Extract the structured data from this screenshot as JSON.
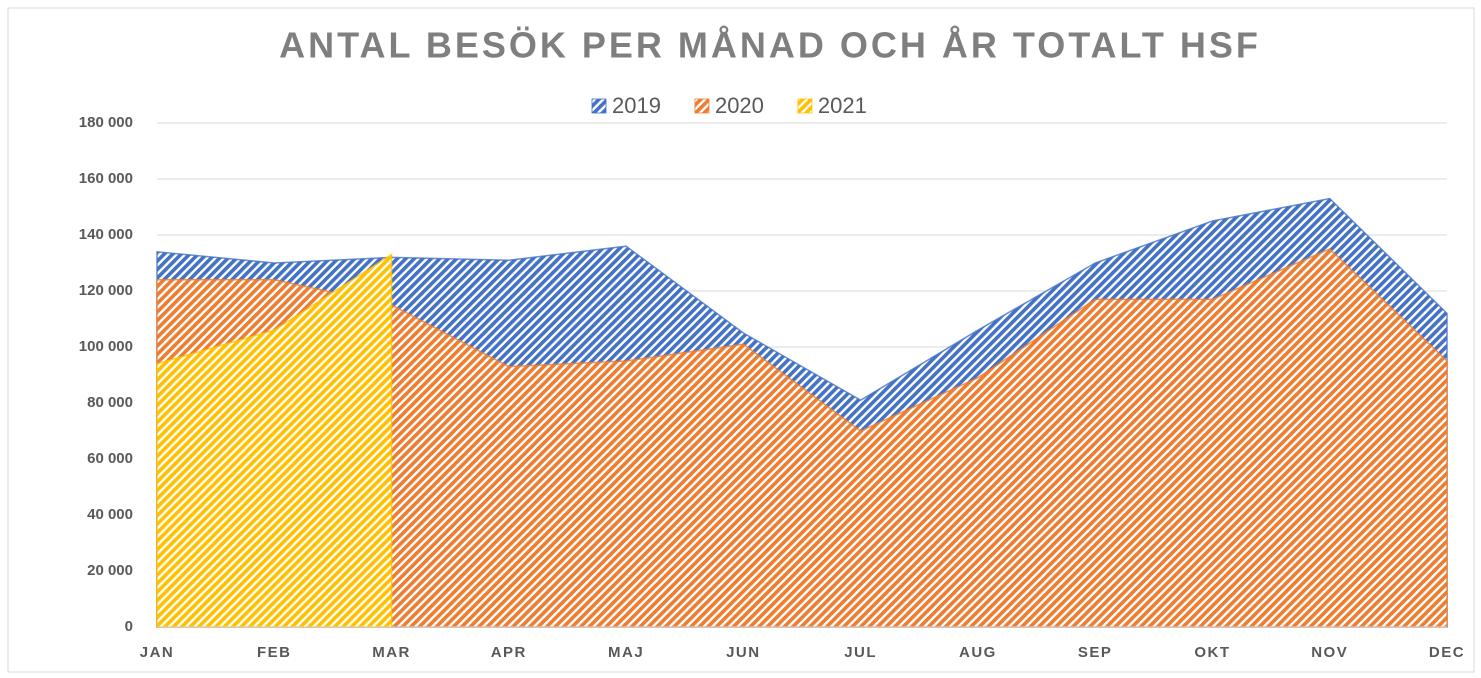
{
  "chart_data": {
    "type": "area",
    "title": "ANTAL BESÖK PER MÅNAD OCH ÅR TOTALT HSF",
    "categories": [
      "JAN",
      "FEB",
      "MAR",
      "APR",
      "MAJ",
      "JUN",
      "JUL",
      "AUG",
      "SEP",
      "OKT",
      "NOV",
      "DEC"
    ],
    "series": [
      {
        "name": "2019",
        "color": "#4472c4",
        "values": [
          134000,
          130000,
          132000,
          131000,
          136000,
          105000,
          81000,
          106000,
          130000,
          145000,
          153000,
          112000
        ]
      },
      {
        "name": "2020",
        "color": "#ed7d31",
        "values": [
          124000,
          124000,
          115000,
          93000,
          95000,
          101000,
          70000,
          89000,
          117000,
          117000,
          135000,
          95000
        ]
      },
      {
        "name": "2021",
        "color": "#ffc000",
        "values": [
          94000,
          106000,
          133000,
          null,
          null,
          null,
          null,
          null,
          null,
          null,
          null,
          null
        ]
      }
    ],
    "ylim": [
      0,
      180000
    ],
    "yticks": [
      0,
      {
        "value": 20000,
        "label": "20 000"
      },
      {
        "value": 40000,
        "label": "40 000"
      },
      {
        "value": 60000,
        "label": "60 000"
      },
      {
        "value": 80000,
        "label": "80 000"
      },
      {
        "value": 100000,
        "label": "100 000"
      },
      {
        "value": 120000,
        "label": "120 000"
      },
      {
        "value": 140000,
        "label": "140 000"
      },
      {
        "value": 160000,
        "label": "160 000"
      },
      {
        "value": 180000,
        "label": "180 000"
      }
    ],
    "grid": true,
    "legend": "top",
    "pattern": "hatched"
  }
}
